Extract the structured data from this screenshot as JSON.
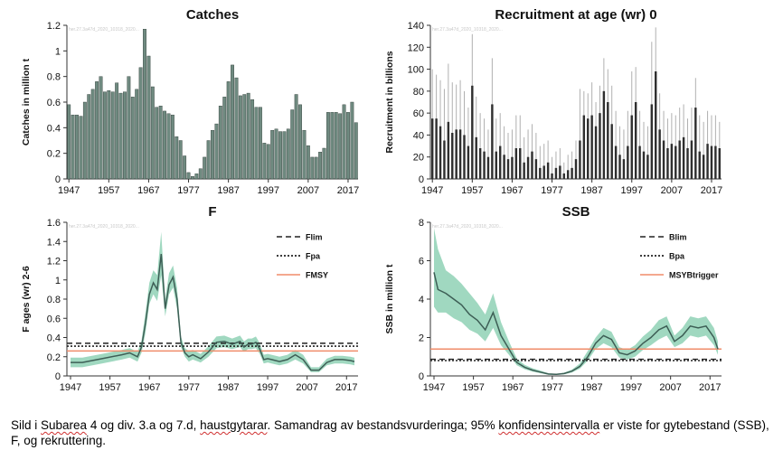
{
  "colors": {
    "catch_bar": "#6f8a80",
    "recruit_bar": "#2f2f2f",
    "recruit_err": "#b0b0b0",
    "f_line": "#3d5e55",
    "ci_fill": "#8fd1b5",
    "msy_line": "#f08c6a",
    "ref_line": "#222222"
  },
  "chart_data": [
    {
      "id": "catches",
      "type": "bar",
      "title": "Catches",
      "ylabel": "Catches in million t",
      "xlabel": "",
      "x_range": [
        1947,
        2019
      ],
      "ylim": [
        0,
        1.2
      ],
      "yticks": [
        "0",
        "0.2",
        "0.4",
        "0.6",
        "0.8",
        "1",
        "1.2"
      ],
      "xticks": [
        "1947",
        "1957",
        "1967",
        "1977",
        "1987",
        "1997",
        "2007",
        "2017"
      ],
      "grid": false,
      "years": [
        1947,
        1948,
        1949,
        1950,
        1951,
        1952,
        1953,
        1954,
        1955,
        1956,
        1957,
        1958,
        1959,
        1960,
        1961,
        1962,
        1963,
        1964,
        1965,
        1966,
        1967,
        1968,
        1969,
        1970,
        1971,
        1972,
        1973,
        1974,
        1975,
        1976,
        1977,
        1978,
        1979,
        1980,
        1981,
        1982,
        1983,
        1984,
        1985,
        1986,
        1987,
        1988,
        1989,
        1990,
        1991,
        1992,
        1993,
        1994,
        1995,
        1996,
        1997,
        1998,
        1999,
        2000,
        2001,
        2002,
        2003,
        2004,
        2005,
        2006,
        2007,
        2008,
        2009,
        2010,
        2011,
        2012,
        2013,
        2014,
        2015,
        2016,
        2017,
        2018,
        2019
      ],
      "values": [
        0.58,
        0.5,
        0.5,
        0.49,
        0.6,
        0.66,
        0.7,
        0.76,
        0.8,
        0.68,
        0.69,
        0.68,
        0.75,
        0.67,
        0.68,
        0.8,
        0.64,
        0.7,
        0.87,
        1.17,
        0.96,
        0.72,
        0.56,
        0.57,
        0.53,
        0.51,
        0.5,
        0.33,
        0.3,
        0.18,
        0.05,
        0.02,
        0.04,
        0.08,
        0.17,
        0.3,
        0.38,
        0.43,
        0.57,
        0.64,
        0.76,
        0.89,
        0.79,
        0.65,
        0.66,
        0.67,
        0.62,
        0.56,
        0.56,
        0.28,
        0.27,
        0.38,
        0.39,
        0.37,
        0.37,
        0.39,
        0.54,
        0.66,
        0.58,
        0.38,
        0.26,
        0.17,
        0.17,
        0.21,
        0.24,
        0.52,
        0.52,
        0.52,
        0.51,
        0.58,
        0.52,
        0.6,
        0.44
      ]
    },
    {
      "id": "recruitment",
      "type": "bar",
      "title": "Recruitment at age (wr) 0",
      "ylabel": "Recruitment in billions",
      "xlabel": "",
      "x_range": [
        1947,
        2019
      ],
      "ylim": [
        0,
        140
      ],
      "yticks": [
        "0",
        "20",
        "40",
        "60",
        "80",
        "100",
        "120",
        "140"
      ],
      "xticks": [
        "1947",
        "1957",
        "1967",
        "1977",
        "1987",
        "1997",
        "2007",
        "2017"
      ],
      "grid": false,
      "years": [
        1947,
        1948,
        1949,
        1950,
        1951,
        1952,
        1953,
        1954,
        1955,
        1956,
        1957,
        1958,
        1959,
        1960,
        1961,
        1962,
        1963,
        1964,
        1965,
        1966,
        1967,
        1968,
        1969,
        1970,
        1971,
        1972,
        1973,
        1974,
        1975,
        1976,
        1977,
        1978,
        1979,
        1980,
        1981,
        1982,
        1983,
        1984,
        1985,
        1986,
        1987,
        1988,
        1989,
        1990,
        1991,
        1992,
        1993,
        1994,
        1995,
        1996,
        1997,
        1998,
        1999,
        2000,
        2001,
        2002,
        2003,
        2004,
        2005,
        2006,
        2007,
        2008,
        2009,
        2010,
        2011,
        2012,
        2013,
        2014,
        2015,
        2016,
        2017,
        2018,
        2019
      ],
      "values": [
        55,
        55,
        48,
        35,
        52,
        42,
        45,
        45,
        40,
        30,
        85,
        38,
        28,
        25,
        20,
        68,
        25,
        30,
        22,
        18,
        20,
        28,
        28,
        15,
        20,
        25,
        18,
        10,
        12,
        15,
        5,
        10,
        12,
        5,
        8,
        10,
        18,
        35,
        58,
        55,
        58,
        48,
        60,
        80,
        70,
        50,
        30,
        22,
        18,
        30,
        58,
        70,
        30,
        25,
        22,
        68,
        98,
        45,
        35,
        28,
        32,
        30,
        35,
        38,
        28,
        35,
        65,
        25,
        22,
        32,
        30,
        30,
        28
      ],
      "upper": [
        100,
        95,
        90,
        82,
        105,
        88,
        86,
        90,
        80,
        65,
        132,
        75,
        60,
        55,
        45,
        110,
        55,
        60,
        48,
        42,
        45,
        58,
        58,
        38,
        45,
        50,
        42,
        30,
        32,
        35,
        20,
        25,
        28,
        15,
        22,
        25,
        35,
        82,
        80,
        78,
        88,
        70,
        85,
        110,
        100,
        85,
        62,
        48,
        45,
        62,
        98,
        102,
        62,
        52,
        48,
        125,
        138,
        78,
        62,
        55,
        60,
        58,
        65,
        68,
        55,
        65,
        92,
        58,
        52,
        62,
        58,
        58,
        52
      ]
    },
    {
      "id": "f",
      "type": "line",
      "title": "F",
      "ylabel": "F ages (wr) 2-6",
      "xlabel": "",
      "x_range": [
        1947,
        2019
      ],
      "ylim": [
        0,
        1.6
      ],
      "yticks": [
        "0",
        "0.2",
        "0.4",
        "0.6",
        "0.8",
        "1",
        "1.2",
        "1.4",
        "1.6"
      ],
      "xticks": [
        "1947",
        "1957",
        "1967",
        "1977",
        "1987",
        "1997",
        "2007",
        "2017"
      ],
      "grid": false,
      "legend_position": "top-right",
      "series": [
        {
          "name": "F ages (wr) 2-6",
          "x": [
            1947,
            1950,
            1955,
            1960,
            1962,
            1964,
            1965,
            1966,
            1967,
            1968,
            1969,
            1970,
            1971,
            1972,
            1973,
            1974,
            1975,
            1976,
            1977,
            1978,
            1980,
            1982,
            1984,
            1986,
            1988,
            1990,
            1991,
            1992,
            1993,
            1994,
            1995,
            1996,
            1997,
            1998,
            2000,
            2002,
            2004,
            2006,
            2008,
            2010,
            2012,
            2014,
            2016,
            2018,
            2019
          ],
          "y": [
            0.14,
            0.14,
            0.18,
            0.22,
            0.24,
            0.2,
            0.3,
            0.55,
            0.85,
            0.97,
            0.9,
            1.27,
            0.7,
            0.95,
            1.03,
            0.8,
            0.35,
            0.24,
            0.2,
            0.22,
            0.18,
            0.25,
            0.35,
            0.36,
            0.33,
            0.36,
            0.3,
            0.33,
            0.33,
            0.35,
            0.28,
            0.17,
            0.18,
            0.17,
            0.15,
            0.17,
            0.22,
            0.17,
            0.06,
            0.06,
            0.14,
            0.17,
            0.17,
            0.16,
            0.15
          ],
          "lower": [
            0.09,
            0.09,
            0.13,
            0.17,
            0.19,
            0.15,
            0.24,
            0.45,
            0.75,
            0.85,
            0.78,
            1.05,
            0.62,
            0.85,
            0.92,
            0.7,
            0.3,
            0.2,
            0.15,
            0.17,
            0.14,
            0.2,
            0.29,
            0.3,
            0.28,
            0.3,
            0.25,
            0.28,
            0.28,
            0.29,
            0.23,
            0.13,
            0.14,
            0.13,
            0.11,
            0.13,
            0.17,
            0.13,
            0.04,
            0.04,
            0.11,
            0.13,
            0.13,
            0.12,
            0.11
          ],
          "upper": [
            0.19,
            0.19,
            0.23,
            0.27,
            0.29,
            0.25,
            0.37,
            0.66,
            0.97,
            1.1,
            1.05,
            1.5,
            0.8,
            1.07,
            1.15,
            0.92,
            0.41,
            0.29,
            0.26,
            0.27,
            0.23,
            0.31,
            0.41,
            0.42,
            0.39,
            0.42,
            0.36,
            0.39,
            0.39,
            0.41,
            0.34,
            0.22,
            0.23,
            0.22,
            0.2,
            0.22,
            0.27,
            0.22,
            0.09,
            0.09,
            0.18,
            0.21,
            0.21,
            0.2,
            0.19
          ]
        }
      ],
      "reference_lines": [
        {
          "name": "Flim",
          "value": 0.34,
          "style": "dashed"
        },
        {
          "name": "Fpa",
          "value": 0.31,
          "style": "dotted"
        },
        {
          "name": "FMSY",
          "value": 0.26,
          "style": "solid"
        }
      ]
    },
    {
      "id": "ssb",
      "type": "line",
      "title": "SSB",
      "ylabel": "SSB in million t",
      "xlabel": "",
      "x_range": [
        1947,
        2019
      ],
      "ylim": [
        0,
        8
      ],
      "yticks": [
        "0",
        "2",
        "4",
        "6",
        "8"
      ],
      "xticks": [
        "1947",
        "1957",
        "1967",
        "1977",
        "1987",
        "1997",
        "2007",
        "2017"
      ],
      "grid": false,
      "legend_position": "top-right",
      "series": [
        {
          "name": "SSB in million t",
          "x": [
            1947,
            1948,
            1950,
            1952,
            1954,
            1956,
            1958,
            1960,
            1962,
            1964,
            1966,
            1968,
            1970,
            1972,
            1974,
            1976,
            1978,
            1980,
            1982,
            1984,
            1986,
            1988,
            1990,
            1992,
            1994,
            1996,
            1998,
            2000,
            2002,
            2004,
            2006,
            2008,
            2010,
            2012,
            2014,
            2016,
            2018,
            2019
          ],
          "y": [
            5.4,
            4.5,
            4.3,
            4.0,
            3.7,
            3.2,
            2.9,
            2.4,
            3.3,
            2.1,
            1.4,
            0.7,
            0.45,
            0.3,
            0.2,
            0.1,
            0.08,
            0.12,
            0.25,
            0.5,
            1.0,
            1.7,
            2.1,
            1.9,
            1.2,
            1.1,
            1.3,
            1.7,
            2.0,
            2.4,
            2.6,
            1.8,
            2.1,
            2.6,
            2.5,
            2.6,
            2.0,
            1.4
          ],
          "lower": [
            3.6,
            3.3,
            3.3,
            3.0,
            2.8,
            2.4,
            2.2,
            1.8,
            2.5,
            1.6,
            1.1,
            0.55,
            0.35,
            0.22,
            0.14,
            0.06,
            0.05,
            0.08,
            0.18,
            0.38,
            0.8,
            1.4,
            1.7,
            1.5,
            0.95,
            0.85,
            1.0,
            1.35,
            1.6,
            1.9,
            2.1,
            1.5,
            1.7,
            2.1,
            2.0,
            2.1,
            1.6,
            1.1
          ],
          "upper": [
            7.7,
            6.6,
            5.5,
            5.2,
            4.8,
            4.3,
            3.8,
            3.2,
            4.3,
            2.8,
            1.8,
            0.9,
            0.58,
            0.4,
            0.28,
            0.14,
            0.11,
            0.17,
            0.33,
            0.65,
            1.3,
            2.0,
            2.5,
            2.3,
            1.5,
            1.35,
            1.6,
            2.05,
            2.4,
            2.9,
            3.1,
            2.1,
            2.5,
            3.1,
            3.0,
            3.1,
            2.5,
            1.8
          ]
        }
      ],
      "reference_lines": [
        {
          "name": "Blim",
          "value": 0.87,
          "style": "dashed"
        },
        {
          "name": "Bpa",
          "value": 0.8,
          "style": "dotted"
        },
        {
          "name": "MSYBtrigger",
          "value": 1.4,
          "style": "solid"
        }
      ]
    }
  ],
  "caption": {
    "parts": [
      {
        "text": "Sild i ",
        "sq": false
      },
      {
        "text": "Subarea",
        "sq": true
      },
      {
        "text": " 4 og div. 3.a og 7.d, ",
        "sq": false
      },
      {
        "text": "haustgytarar",
        "sq": true
      },
      {
        "text": ". Samandrag av bestandsvurderinga; 95% ",
        "sq": false
      },
      {
        "text": "konfidensintervalla",
        "sq": true
      },
      {
        "text": " er viste for gytebestand (SSB), F, og rekruttering.",
        "sq": false
      }
    ]
  }
}
